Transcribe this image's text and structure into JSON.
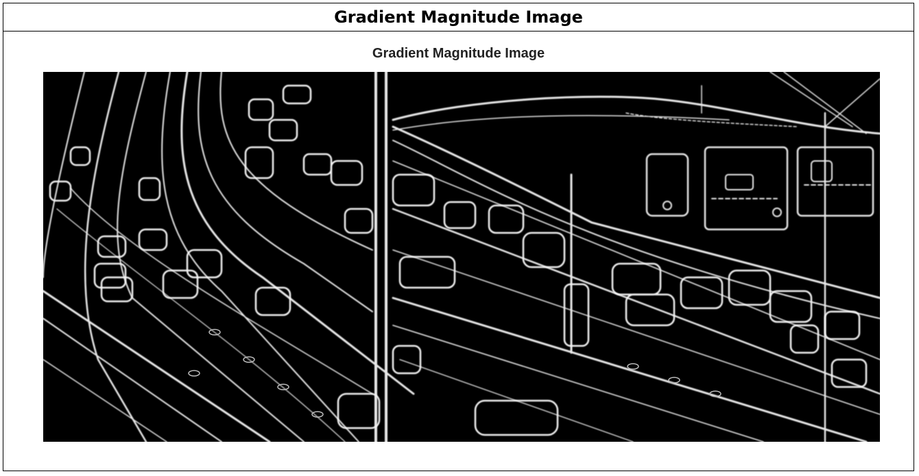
{
  "header": {
    "title": "Gradient Magnitude Image"
  },
  "figure": {
    "title": "Gradient Magnitude Image",
    "image_description_icon": "edge-map-image",
    "background_color": "#000000",
    "edge_color": "#f2f2f2"
  }
}
